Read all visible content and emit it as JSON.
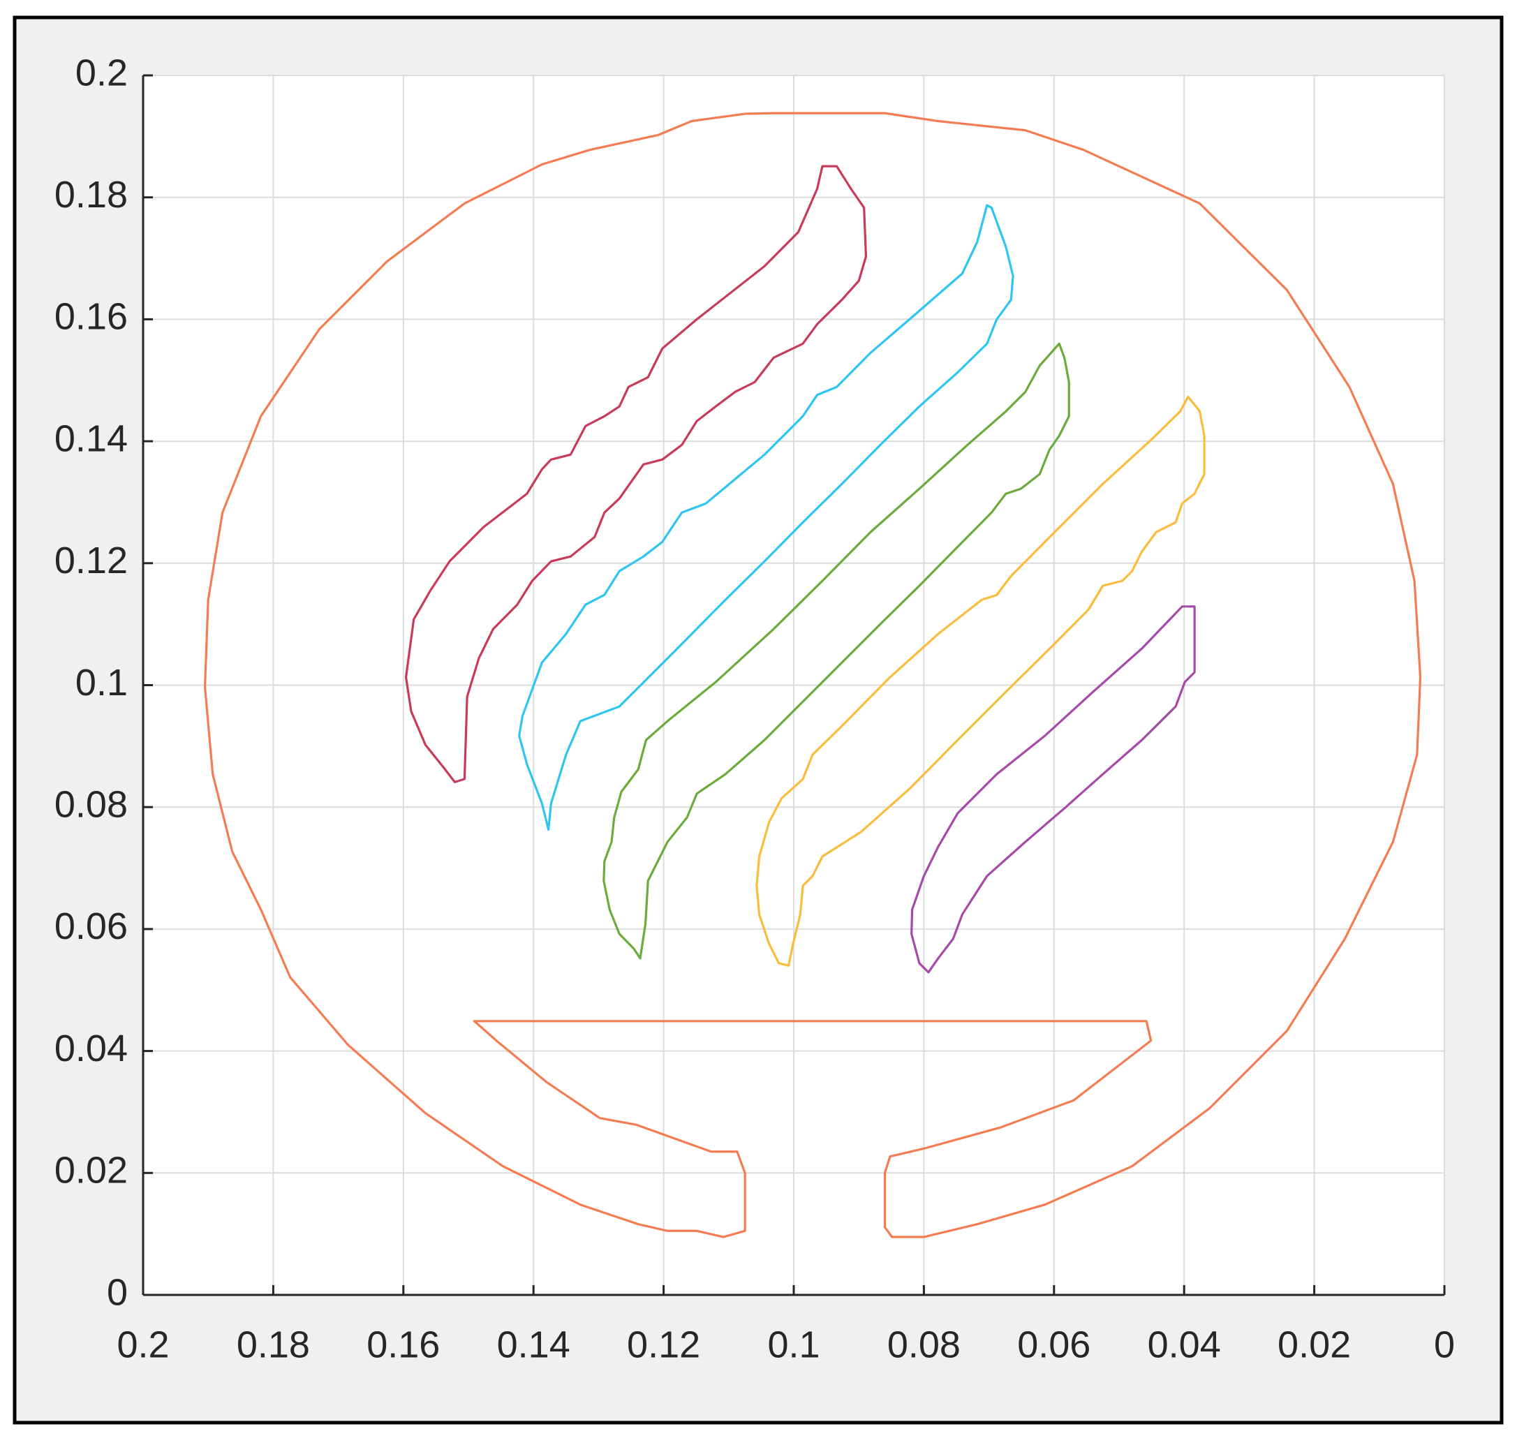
{
  "chart_data": {
    "type": "line",
    "grid": true,
    "xlim": [
      0.2,
      0
    ],
    "ylim": [
      0,
      0.2
    ],
    "xticks": [
      0.2,
      0.18,
      0.16,
      0.14,
      0.12,
      0.1,
      0.08,
      0.06,
      0.04,
      0.02,
      0
    ],
    "yticks": [
      0,
      0.02,
      0.04,
      0.06,
      0.08,
      0.1,
      0.12,
      0.14,
      0.16,
      0.18,
      0.2
    ],
    "series": [
      {
        "color": "#f47c52",
        "x": [
          0.1075,
          0.1075,
          0.1087,
          0.1127,
          0.1242,
          0.1298,
          0.138,
          0.1457,
          0.1491,
          0.0458,
          0.0451,
          0.057,
          0.0681,
          0.08,
          0.0852,
          0.086,
          0.086,
          0.0849,
          0.08,
          0.0718,
          0.0614,
          0.048,
          0.0361,
          0.0242,
          0.0153,
          0.0079,
          0.0042,
          0.0037,
          0.0046,
          0.0079,
          0.0146,
          0.0242,
          0.0376,
          0.0555,
          0.0644,
          0.0778,
          0.086,
          0.1031,
          0.1075,
          0.1157,
          0.1209,
          0.1313,
          0.1387,
          0.1506,
          0.1625,
          0.1729,
          0.1819,
          0.1878,
          0.19,
          0.1905,
          0.1893,
          0.1863,
          0.1819,
          0.1774,
          0.1685,
          0.1566,
          0.1447,
          0.1328,
          0.1239,
          0.1194,
          0.1149,
          0.1108
        ],
        "values": [
          0.0105,
          0.02,
          0.0235,
          0.0235,
          0.0279,
          0.029,
          0.0349,
          0.0417,
          0.0449,
          0.0449,
          0.0417,
          0.0319,
          0.0275,
          0.024,
          0.0227,
          0.02,
          0.0111,
          0.0095,
          0.0095,
          0.0116,
          0.0148,
          0.0211,
          0.0306,
          0.0433,
          0.0584,
          0.0743,
          0.0886,
          0.1013,
          0.1171,
          0.133,
          0.1489,
          0.1648,
          0.179,
          0.1878,
          0.191,
          0.1925,
          0.1938,
          0.1938,
          0.1937,
          0.1925,
          0.1902,
          0.1878,
          0.1854,
          0.179,
          0.1695,
          0.1584,
          0.1441,
          0.1283,
          0.114,
          0.0997,
          0.0854,
          0.0727,
          0.0632,
          0.0521,
          0.041,
          0.0298,
          0.0211,
          0.0148,
          0.0116,
          0.0105,
          0.0105,
          0.0095
        ]
      },
      {
        "color": "#c83a5a",
        "x": [
          0.0956,
          0.0934,
          0.0912,
          0.0892,
          0.0889,
          0.09,
          0.0926,
          0.0964,
          0.0986,
          0.1031,
          0.106,
          0.109,
          0.112,
          0.1149,
          0.1172,
          0.1202,
          0.1231,
          0.1268,
          0.1291,
          0.1306,
          0.1343,
          0.1373,
          0.1402,
          0.1425,
          0.1462,
          0.1484,
          0.1502,
          0.1506,
          0.1521,
          0.1536,
          0.1566,
          0.1588,
          0.1596,
          0.1584,
          0.1558,
          0.1529,
          0.1477,
          0.141,
          0.1387,
          0.1373,
          0.1343,
          0.132,
          0.1291,
          0.1268,
          0.1254,
          0.1224,
          0.1202,
          0.1149,
          0.1045,
          0.0993,
          0.0964
        ],
        "values": [
          0.1851,
          0.1851,
          0.1814,
          0.1783,
          0.1703,
          0.1663,
          0.1632,
          0.1592,
          0.156,
          0.1537,
          0.1497,
          0.1481,
          0.1457,
          0.1433,
          0.1394,
          0.137,
          0.1362,
          0.1306,
          0.1283,
          0.1243,
          0.1211,
          0.1203,
          0.1171,
          0.1132,
          0.1092,
          0.1044,
          0.0981,
          0.0846,
          0.0841,
          0.0862,
          0.0902,
          0.0957,
          0.1013,
          0.1108,
          0.1156,
          0.1203,
          0.1259,
          0.1314,
          0.1354,
          0.137,
          0.1378,
          0.1425,
          0.1441,
          0.1457,
          0.1489,
          0.1505,
          0.1552,
          0.16,
          0.1687,
          0.1743,
          0.1814
        ]
      },
      {
        "color": "#2ec5f0",
        "x": [
          0.0703,
          0.0696,
          0.0674,
          0.0663,
          0.0666,
          0.0688,
          0.0703,
          0.0748,
          0.0807,
          0.0867,
          0.0926,
          0.0986,
          0.1045,
          0.1105,
          0.1179,
          0.1268,
          0.1328,
          0.135,
          0.1373,
          0.1377,
          0.1387,
          0.141,
          0.1422,
          0.1417,
          0.1387,
          0.135,
          0.132,
          0.1291,
          0.1268,
          0.1231,
          0.1202,
          0.1172,
          0.1135,
          0.109,
          0.1045,
          0.0986,
          0.0964,
          0.0934,
          0.0882,
          0.0822,
          0.0741,
          0.0718
        ],
        "values": [
          0.1787,
          0.1783,
          0.1719,
          0.1671,
          0.1632,
          0.16,
          0.156,
          0.1513,
          0.1457,
          0.1394,
          0.133,
          0.1267,
          0.1203,
          0.114,
          0.106,
          0.0965,
          0.0941,
          0.0886,
          0.0806,
          0.0763,
          0.0806,
          0.087,
          0.0917,
          0.0949,
          0.1037,
          0.1084,
          0.1132,
          0.1148,
          0.1187,
          0.1211,
          0.1235,
          0.1283,
          0.1298,
          0.1338,
          0.1378,
          0.1441,
          0.1476,
          0.1489,
          0.1545,
          0.16,
          0.1675,
          0.1727
        ]
      },
      {
        "color": "#6aab3c",
        "x": [
          0.0592,
          0.0584,
          0.0577,
          0.0577,
          0.0592,
          0.0607,
          0.0622,
          0.0651,
          0.0674,
          0.0696,
          0.0748,
          0.0807,
          0.0867,
          0.0926,
          0.0986,
          0.1045,
          0.1105,
          0.1149,
          0.1164,
          0.1194,
          0.1224,
          0.1228,
          0.1236,
          0.1246,
          0.1268,
          0.1283,
          0.1292,
          0.1291,
          0.128,
          0.1276,
          0.1265,
          0.1239,
          0.1227,
          0.1194,
          0.112,
          0.1031,
          0.0956,
          0.0882,
          0.0807,
          0.0733,
          0.0674,
          0.0644,
          0.0622
        ],
        "values": [
          0.156,
          0.1537,
          0.1497,
          0.1441,
          0.1409,
          0.1386,
          0.1346,
          0.1322,
          0.1314,
          0.1283,
          0.1227,
          0.1163,
          0.11,
          0.1037,
          0.0973,
          0.091,
          0.0854,
          0.0822,
          0.0783,
          0.0743,
          0.0679,
          0.0608,
          0.0552,
          0.0568,
          0.0592,
          0.0632,
          0.0679,
          0.0711,
          0.0743,
          0.0783,
          0.0825,
          0.0862,
          0.091,
          0.0941,
          0.1005,
          0.1092,
          0.1171,
          0.1251,
          0.1322,
          0.1394,
          0.1449,
          0.1481,
          0.1524
        ]
      },
      {
        "color": "#f9bc3c",
        "x": [
          0.0394,
          0.0376,
          0.0369,
          0.0369,
          0.0384,
          0.0403,
          0.0413,
          0.0443,
          0.0465,
          0.048,
          0.0495,
          0.0525,
          0.0547,
          0.0599,
          0.0674,
          0.0748,
          0.0822,
          0.0897,
          0.0956,
          0.0971,
          0.0986,
          0.099,
          0.1001,
          0.1008,
          0.1023,
          0.1038,
          0.1053,
          0.1057,
          0.1053,
          0.1038,
          0.1019,
          0.0986,
          0.0971,
          0.0926,
          0.0852,
          0.0778,
          0.0711,
          0.0688,
          0.0666,
          0.0599,
          0.0525,
          0.0451,
          0.0406
        ],
        "values": [
          0.1473,
          0.1449,
          0.1409,
          0.1346,
          0.1314,
          0.1298,
          0.1267,
          0.1251,
          0.1219,
          0.1187,
          0.1171,
          0.1163,
          0.1124,
          0.1068,
          0.0989,
          0.091,
          0.083,
          0.0759,
          0.0719,
          0.0687,
          0.0671,
          0.0624,
          0.0576,
          0.054,
          0.0544,
          0.0576,
          0.0624,
          0.0671,
          0.0719,
          0.0775,
          0.0814,
          0.0846,
          0.0886,
          0.0933,
          0.1013,
          0.1084,
          0.114,
          0.1148,
          0.1179,
          0.1251,
          0.133,
          0.1402,
          0.1449
        ]
      },
      {
        "color": "#a54aa8",
        "x": [
          0.0403,
          0.0384,
          0.0384,
          0.0399,
          0.0413,
          0.0465,
          0.0525,
          0.0584,
          0.0644,
          0.0703,
          0.0741,
          0.0755,
          0.0778,
          0.0793,
          0.0807,
          0.0819,
          0.0818,
          0.08,
          0.0778,
          0.0748,
          0.0688,
          0.0614,
          0.054,
          0.0465
        ],
        "values": [
          0.1129,
          0.1129,
          0.1021,
          0.1005,
          0.0965,
          0.091,
          0.0854,
          0.0798,
          0.0743,
          0.0687,
          0.0624,
          0.0584,
          0.0552,
          0.0529,
          0.0544,
          0.0592,
          0.0632,
          0.0687,
          0.0735,
          0.079,
          0.0854,
          0.0917,
          0.0989,
          0.106
        ]
      }
    ]
  }
}
